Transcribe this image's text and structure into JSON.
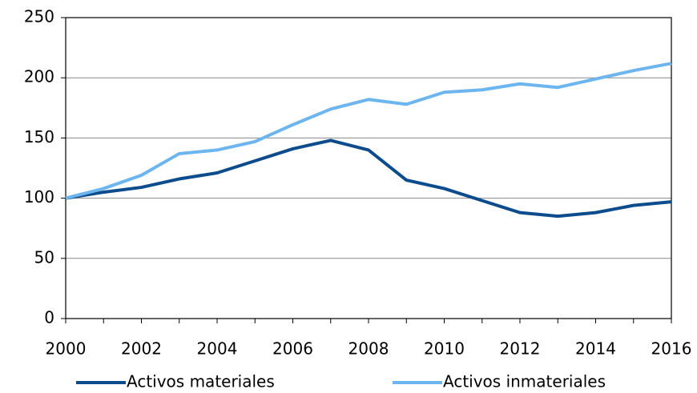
{
  "chart_data": {
    "type": "line",
    "x": [
      2000,
      2001,
      2002,
      2003,
      2004,
      2005,
      2006,
      2007,
      2008,
      2009,
      2010,
      2011,
      2012,
      2013,
      2014,
      2015,
      2016
    ],
    "series": [
      {
        "name": "Activos materiales",
        "color": "#0d4c8c",
        "values": [
          100,
          105,
          109,
          116,
          121,
          131,
          141,
          148,
          140,
          115,
          108,
          98,
          88,
          85,
          88,
          94,
          97
        ]
      },
      {
        "name": "Activos inmateriales",
        "color": "#6db5ee",
        "values": [
          100,
          108,
          119,
          137,
          140,
          147,
          161,
          174,
          182,
          178,
          188,
          190,
          195,
          192,
          199,
          206,
          212
        ]
      }
    ],
    "xlim": [
      2000,
      2016
    ],
    "xticks": [
      2000,
      2002,
      2004,
      2006,
      2008,
      2010,
      2012,
      2014,
      2016
    ],
    "ylim": [
      0,
      250
    ],
    "yticks": [
      0,
      50,
      100,
      150,
      200,
      250
    ],
    "grid": true,
    "legend": "bottom"
  }
}
